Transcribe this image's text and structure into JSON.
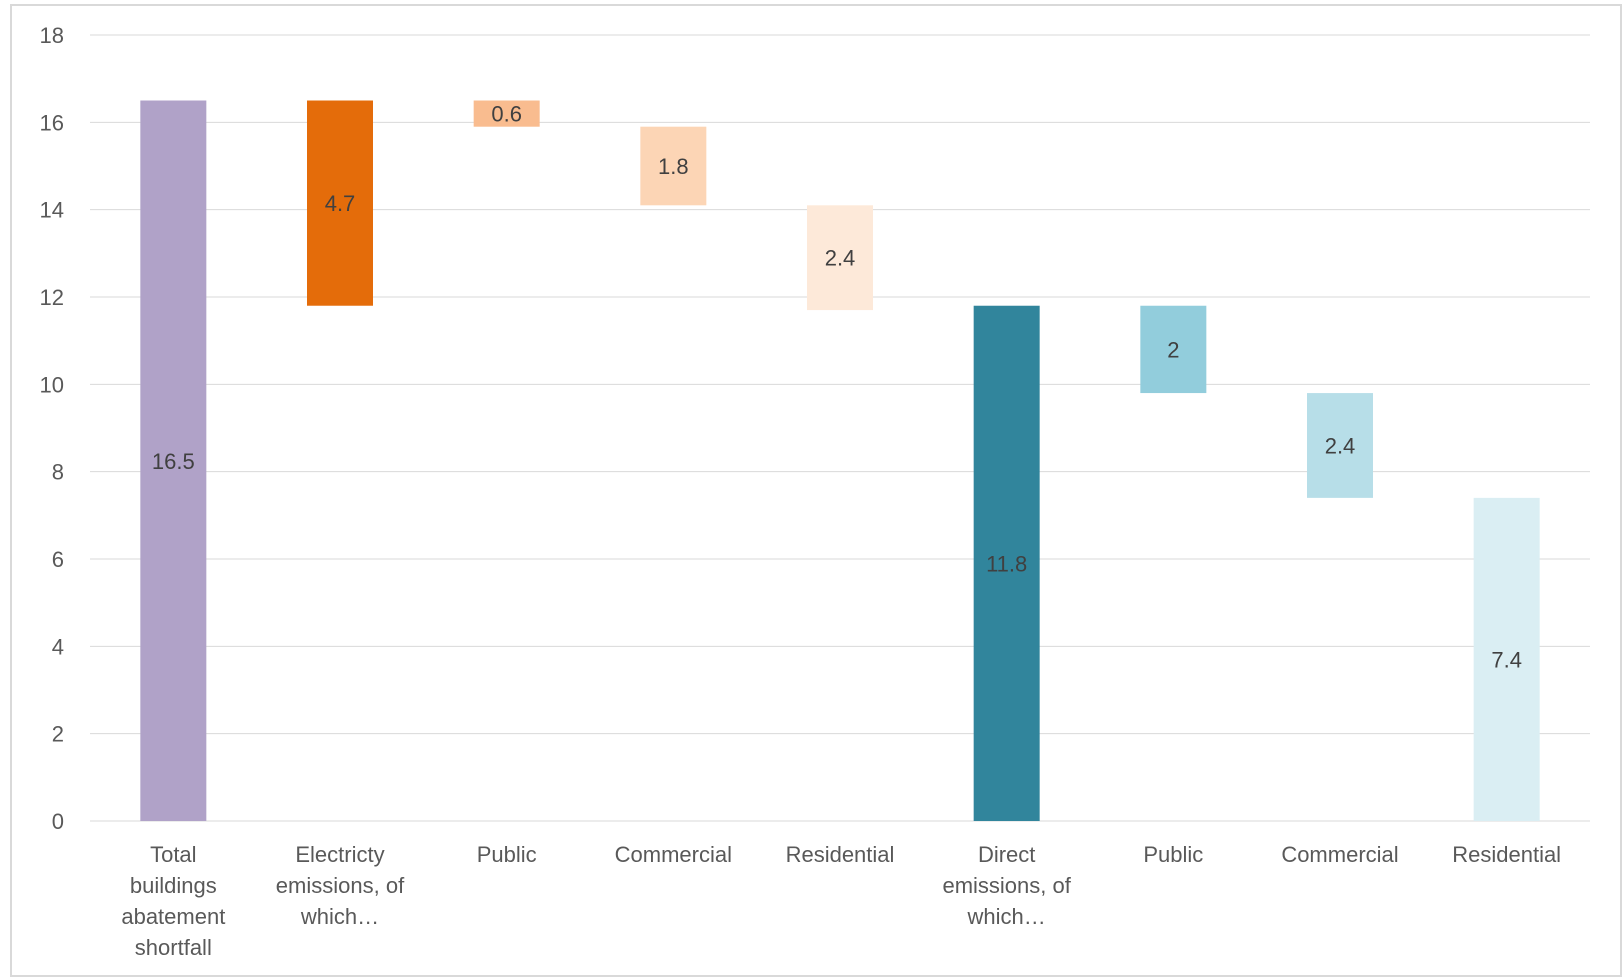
{
  "chart_data": {
    "type": "bar",
    "subtype": "waterfall",
    "title": "",
    "xlabel": "",
    "ylabel": "",
    "ylim": [
      0,
      18
    ],
    "yticks": [
      0,
      2,
      4,
      6,
      8,
      10,
      12,
      14,
      16,
      18
    ],
    "grid": true,
    "legend": "none",
    "categories": [
      [
        "Total",
        "buildings",
        "abatement",
        "shortfall"
      ],
      [
        "Electricty",
        "emissions, of",
        "which…"
      ],
      [
        "Public"
      ],
      [
        "Commercial"
      ],
      [
        "Residential"
      ],
      [
        "Direct",
        "emissions, of",
        "which…"
      ],
      [
        "Public"
      ],
      [
        "Commercial"
      ],
      [
        "Residential"
      ]
    ],
    "bars": [
      {
        "start": 0,
        "end": 16.5,
        "value": "16.5",
        "color": "#b0a2c8"
      },
      {
        "start": 11.8,
        "end": 16.5,
        "value": "4.7",
        "color": "#e46c0a"
      },
      {
        "start": 15.9,
        "end": 16.5,
        "value": "0.6",
        "color": "#f9bc8f"
      },
      {
        "start": 14.1,
        "end": 15.9,
        "value": "1.8",
        "color": "#fcd5b5"
      },
      {
        "start": 11.7,
        "end": 14.1,
        "value": "2.4",
        "color": "#fde9d9"
      },
      {
        "start": 0,
        "end": 11.8,
        "value": "11.8",
        "color": "#31859c"
      },
      {
        "start": 9.8,
        "end": 11.8,
        "value": "2",
        "color": "#92cddc"
      },
      {
        "start": 7.4,
        "end": 9.8,
        "value": "2.4",
        "color": "#b7dee8"
      },
      {
        "start": 0,
        "end": 7.4,
        "value": "7.4",
        "color": "#daeef3"
      }
    ]
  }
}
